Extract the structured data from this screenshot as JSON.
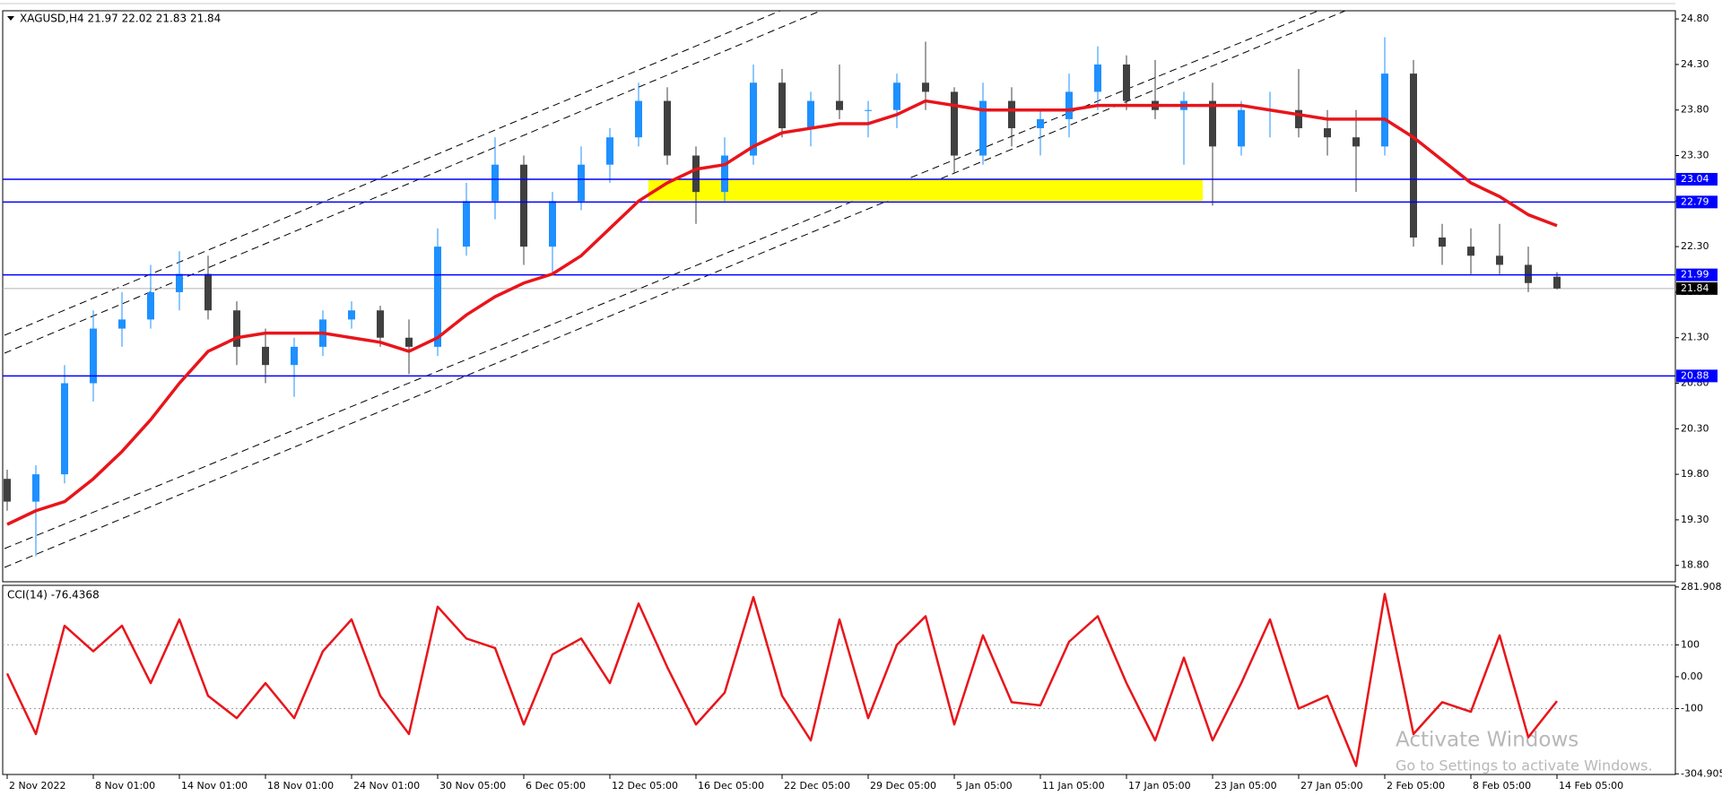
{
  "chart_data": {
    "type": "candlestick",
    "title": "XAGUSD,H4  21.97 22.02 21.83 21.84",
    "categories": [
      "2 Nov 2022",
      null,
      null,
      "8 Nov 01:00",
      null,
      null,
      "14 Nov 01:00",
      null,
      null,
      "18 Nov 01:00",
      null,
      null,
      "24 Nov 01:00",
      null,
      null,
      "30 Nov 05:00",
      null,
      null,
      "6 Dec 05:00",
      null,
      null,
      "12 Dec 05:00",
      null,
      null,
      "16 Dec 05:00",
      null,
      null,
      "22 Dec 05:00",
      null,
      null,
      "29 Dec 05:00",
      null,
      null,
      "5 Jan 05:00",
      null,
      null,
      "11 Jan 05:00",
      null,
      null,
      "17 Jan 05:00",
      null,
      null,
      "23 Jan 05:00",
      null,
      null,
      "27 Jan 05:00",
      null,
      null,
      "2 Feb 05:00",
      null,
      null,
      "8 Feb 05:00",
      null,
      null,
      "14 Feb 05:00"
    ],
    "open": [
      19.75,
      19.5,
      19.8,
      20.8,
      21.4,
      21.5,
      21.8,
      22.0,
      21.6,
      21.2,
      21.0,
      21.2,
      21.5,
      21.6,
      21.3,
      21.2,
      22.3,
      22.8,
      23.2,
      22.3,
      22.8,
      23.2,
      23.5,
      23.9,
      23.3,
      22.9,
      23.3,
      24.1,
      23.6,
      23.9,
      23.8,
      23.8,
      24.1,
      24.0,
      23.3,
      23.9,
      23.6,
      23.7,
      24.0,
      24.3,
      23.9,
      23.8,
      23.9,
      23.4,
      23.8,
      23.8,
      23.6,
      23.5,
      23.4,
      24.2,
      22.4,
      22.3,
      22.2,
      22.1,
      21.97
    ],
    "high": [
      19.85,
      19.9,
      21.0,
      21.6,
      21.8,
      22.1,
      22.25,
      22.2,
      21.7,
      21.4,
      21.3,
      21.6,
      21.7,
      21.65,
      21.5,
      22.5,
      23.0,
      23.5,
      23.3,
      22.9,
      23.4,
      23.6,
      24.1,
      24.05,
      23.4,
      23.5,
      24.3,
      24.25,
      24.0,
      24.3,
      23.9,
      24.2,
      24.55,
      24.05,
      24.1,
      24.05,
      23.8,
      24.2,
      24.5,
      24.4,
      24.35,
      24.0,
      24.1,
      23.9,
      24.0,
      24.25,
      23.8,
      23.8,
      24.6,
      24.35,
      22.55,
      22.5,
      22.55,
      22.3,
      22.02
    ],
    "low": [
      19.4,
      18.9,
      19.7,
      20.6,
      21.2,
      21.4,
      21.6,
      21.5,
      21.0,
      20.8,
      20.65,
      21.1,
      21.4,
      21.2,
      20.9,
      21.1,
      22.2,
      22.6,
      22.1,
      22.0,
      22.7,
      23.0,
      23.4,
      23.2,
      22.55,
      22.8,
      23.2,
      23.5,
      23.4,
      23.7,
      23.5,
      23.6,
      23.8,
      23.1,
      23.2,
      23.4,
      23.3,
      23.5,
      23.8,
      23.8,
      23.7,
      23.2,
      22.75,
      23.3,
      23.5,
      23.5,
      23.3,
      22.9,
      23.3,
      22.3,
      22.1,
      22.0,
      22.0,
      21.8,
      21.83
    ],
    "close": [
      19.5,
      19.8,
      20.8,
      21.4,
      21.5,
      21.8,
      22.0,
      21.6,
      21.2,
      21.0,
      21.2,
      21.5,
      21.6,
      21.3,
      21.2,
      22.3,
      22.8,
      23.2,
      22.3,
      22.8,
      23.2,
      23.5,
      23.9,
      23.3,
      22.9,
      23.3,
      24.1,
      23.6,
      23.9,
      23.8,
      23.8,
      24.1,
      24.0,
      23.3,
      23.9,
      23.6,
      23.7,
      24.0,
      24.3,
      23.9,
      23.8,
      23.9,
      23.4,
      23.8,
      23.8,
      23.6,
      23.5,
      23.4,
      24.2,
      22.4,
      22.3,
      22.2,
      22.1,
      21.9,
      21.84
    ],
    "up_color": "#1e90ff",
    "down_color": "#404040",
    "ylim": [
      18.62,
      24.89
    ],
    "yticks": [
      {
        "value": 24.8,
        "label": "24.80"
      },
      {
        "value": 24.3,
        "label": "24.30"
      },
      {
        "value": 23.8,
        "label": "23.80"
      },
      {
        "value": 23.3,
        "label": "23.30"
      },
      {
        "value": 22.8,
        "label": "22.80"
      },
      {
        "value": 22.3,
        "label": "22.30"
      },
      {
        "value": 21.8,
        "label": "21.80"
      },
      {
        "value": 21.3,
        "label": "21.30"
      },
      {
        "value": 20.8,
        "label": "20.80"
      },
      {
        "value": 20.3,
        "label": "20.30"
      },
      {
        "value": 19.8,
        "label": "19.80"
      },
      {
        "value": 19.3,
        "label": "19.30"
      },
      {
        "value": 18.8,
        "label": "18.80"
      }
    ],
    "levels": [
      23.04,
      22.79,
      21.99,
      20.88
    ],
    "level_color": "#0000ff",
    "current_price": 21.84,
    "ma": {
      "color": "#e8151b",
      "values": [
        19.25,
        19.4,
        19.5,
        19.75,
        20.05,
        20.4,
        20.8,
        21.15,
        21.3,
        21.35,
        21.35,
        21.35,
        21.3,
        21.25,
        21.15,
        21.3,
        21.55,
        21.75,
        21.9,
        22.0,
        22.2,
        22.5,
        22.8,
        23.0,
        23.15,
        23.2,
        23.4,
        23.55,
        23.6,
        23.65,
        23.65,
        23.75,
        23.9,
        23.85,
        23.8,
        23.8,
        23.8,
        23.8,
        23.85,
        23.85,
        23.85,
        23.85,
        23.85,
        23.85,
        23.8,
        23.75,
        23.7,
        23.7,
        23.7,
        23.5,
        23.25,
        23.0,
        22.85,
        22.65,
        22.53
      ]
    },
    "indicator": {
      "title": "CCI(14) -76.4368",
      "color": "#e8151b",
      "values": [
        10,
        -180,
        160,
        80,
        160,
        -20,
        180,
        -60,
        -130,
        -20,
        -130,
        80,
        180,
        -60,
        -180,
        220,
        120,
        90,
        -150,
        70,
        120,
        -20,
        230,
        30,
        -150,
        -50,
        250,
        -60,
        -200,
        180,
        -130,
        100,
        190,
        -150,
        130,
        -80,
        -90,
        110,
        190,
        -20,
        -200,
        60,
        -200,
        -20,
        180,
        -100,
        -60,
        -280,
        260,
        -180,
        -80,
        -110,
        130,
        -190,
        -76.4368
      ],
      "ylim": [
        -307,
        287
      ],
      "yticks": [
        281.908,
        100,
        {
          "value": 0,
          "label": "0.00"
        },
        -100,
        -304.905
      ],
      "levels": [
        100,
        -100
      ]
    },
    "watermark": {
      "title": "Activate Windows",
      "subtitle": "Go to Settings to activate Windows."
    }
  }
}
